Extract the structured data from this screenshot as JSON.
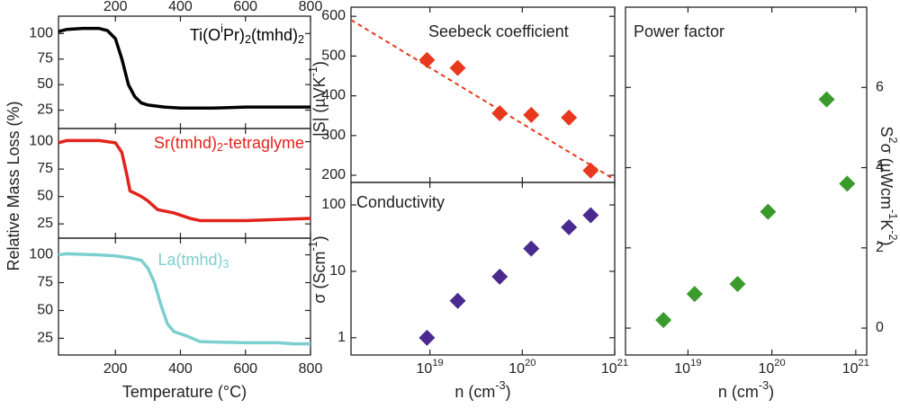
{
  "chart_data": [
    {
      "type": "line",
      "x": [
        25,
        50,
        100,
        150,
        175,
        200,
        220,
        240,
        260,
        280,
        300,
        350,
        400,
        500,
        600,
        700,
        800
      ],
      "series": [
        {
          "name": "Ti(O^{i}Pr)_{2}(tmhd)_{2}",
          "color": "#000000",
          "values": [
            102,
            104,
            105,
            105,
            103,
            95,
            75,
            50,
            38,
            32,
            30,
            28,
            27,
            27,
            28,
            28,
            28
          ]
        }
      ],
      "xlim": [
        25,
        800
      ],
      "xticks": [
        200,
        400,
        600,
        800
      ],
      "xticks_position": "top",
      "ylim": [
        7,
        117
      ],
      "yticks": [
        25,
        50,
        75,
        100
      ]
    },
    {
      "type": "line",
      "x": [
        25,
        50,
        150,
        200,
        220,
        235,
        245,
        260,
        280,
        300,
        330,
        380,
        430,
        460,
        600,
        800
      ],
      "series": [
        {
          "name": "Sr(tmhd)_{2}-tetraglyme",
          "color": "#e3231b",
          "values": [
            99,
            101,
            101,
            99,
            90,
            70,
            55,
            53,
            50,
            46,
            38,
            35,
            30,
            28,
            28,
            30
          ]
        }
      ],
      "xlim": [
        25,
        800
      ],
      "ylim": [
        12,
        112
      ],
      "yticks": [
        25,
        50,
        75,
        100
      ],
      "ylabel": "Relative Mass Loss (%)"
    },
    {
      "type": "line",
      "x": [
        25,
        50,
        150,
        200,
        250,
        280,
        300,
        320,
        340,
        360,
        380,
        420,
        460,
        600,
        700,
        750,
        800
      ],
      "series": [
        {
          "name": "La(tmhd)_{3}",
          "color": "#7ccfcf",
          "values": [
            100,
            101,
            100,
            99,
            97,
            95,
            88,
            75,
            55,
            38,
            31,
            27,
            22,
            21,
            21,
            20,
            20
          ]
        }
      ],
      "xlim": [
        25,
        800
      ],
      "xticks": [
        200,
        400,
        600,
        800
      ],
      "xticks_position": "bottom",
      "xlabel": "Temperature (°C)",
      "ylim": [
        10,
        115
      ],
      "yticks": [
        25,
        50,
        75,
        100
      ]
    },
    {
      "type": "scatter",
      "title": "Seebeck coefficient",
      "x": [
        9.3e+18,
        2e+19,
        5.7e+19,
        1.25e+20,
        3.2e+20,
        5.5e+20
      ],
      "values": [
        490,
        470,
        356,
        352,
        345,
        212
      ],
      "color": "#e8391e",
      "trendline": {
        "x": [
          1.4e+18,
          1e+21
        ],
        "values": [
          591,
          189
        ],
        "color": "#e8391e"
      },
      "xlog": true,
      "xlim": [
        1.4e+18,
        1e+21
      ],
      "ylim": [
        182,
        623
      ],
      "yticks": [
        200,
        300,
        400,
        500,
        600
      ],
      "ylabel": "|S| (µVK^{-1})"
    },
    {
      "type": "scatter",
      "title": "Conductivity",
      "x": [
        9.3e+18,
        2e+19,
        5.7e+19,
        1.25e+20,
        3.2e+20,
        5.5e+20
      ],
      "values": [
        1.0,
        3.6,
        8.3,
        22,
        46,
        70
      ],
      "color": "#4b2a8f",
      "xlog": true,
      "ylog": true,
      "xlim": [
        1.4e+18,
        1e+21
      ],
      "xticks": [
        {
          "value": 1e+19,
          "label": "10^{19}"
        },
        {
          "value": 1e+20,
          "label": "10^{20}"
        },
        {
          "value": 1e+21,
          "label": "10^{21}"
        }
      ],
      "xticks_position": "bottom",
      "ylim": [
        0.55,
        218
      ],
      "yticks": [
        1,
        10,
        100
      ],
      "ylabel": "σ (Scm^{-1})",
      "xlabel": "n (cm^{-3})"
    },
    {
      "type": "scatter",
      "title": "Power factor",
      "x": [
        5.1e+18,
        1.2e+19,
        3.9e+19,
        9e+19,
        4.5e+20,
        7.9e+20
      ],
      "values": [
        0.2,
        0.85,
        1.1,
        2.9,
        5.7,
        3.6
      ],
      "color": "#3a9a2c",
      "xlog": true,
      "xlim": [
        1.8e+18,
        1.35e+21
      ],
      "xticks": [
        {
          "value": 1e+19,
          "label": "10^{19}"
        },
        {
          "value": 1e+20,
          "label": "10^{20}"
        },
        {
          "value": 1e+21,
          "label": "10^{21}"
        }
      ],
      "xticks_position": "bottom",
      "ylim": [
        -0.67,
        8
      ],
      "yticks": [
        0,
        2,
        4,
        6
      ],
      "yaxis_side": "right",
      "ylabel": "S^{2}σ (µWcm^{-1}K^{-2})",
      "xlabel": "n (cm^{-3})"
    }
  ]
}
